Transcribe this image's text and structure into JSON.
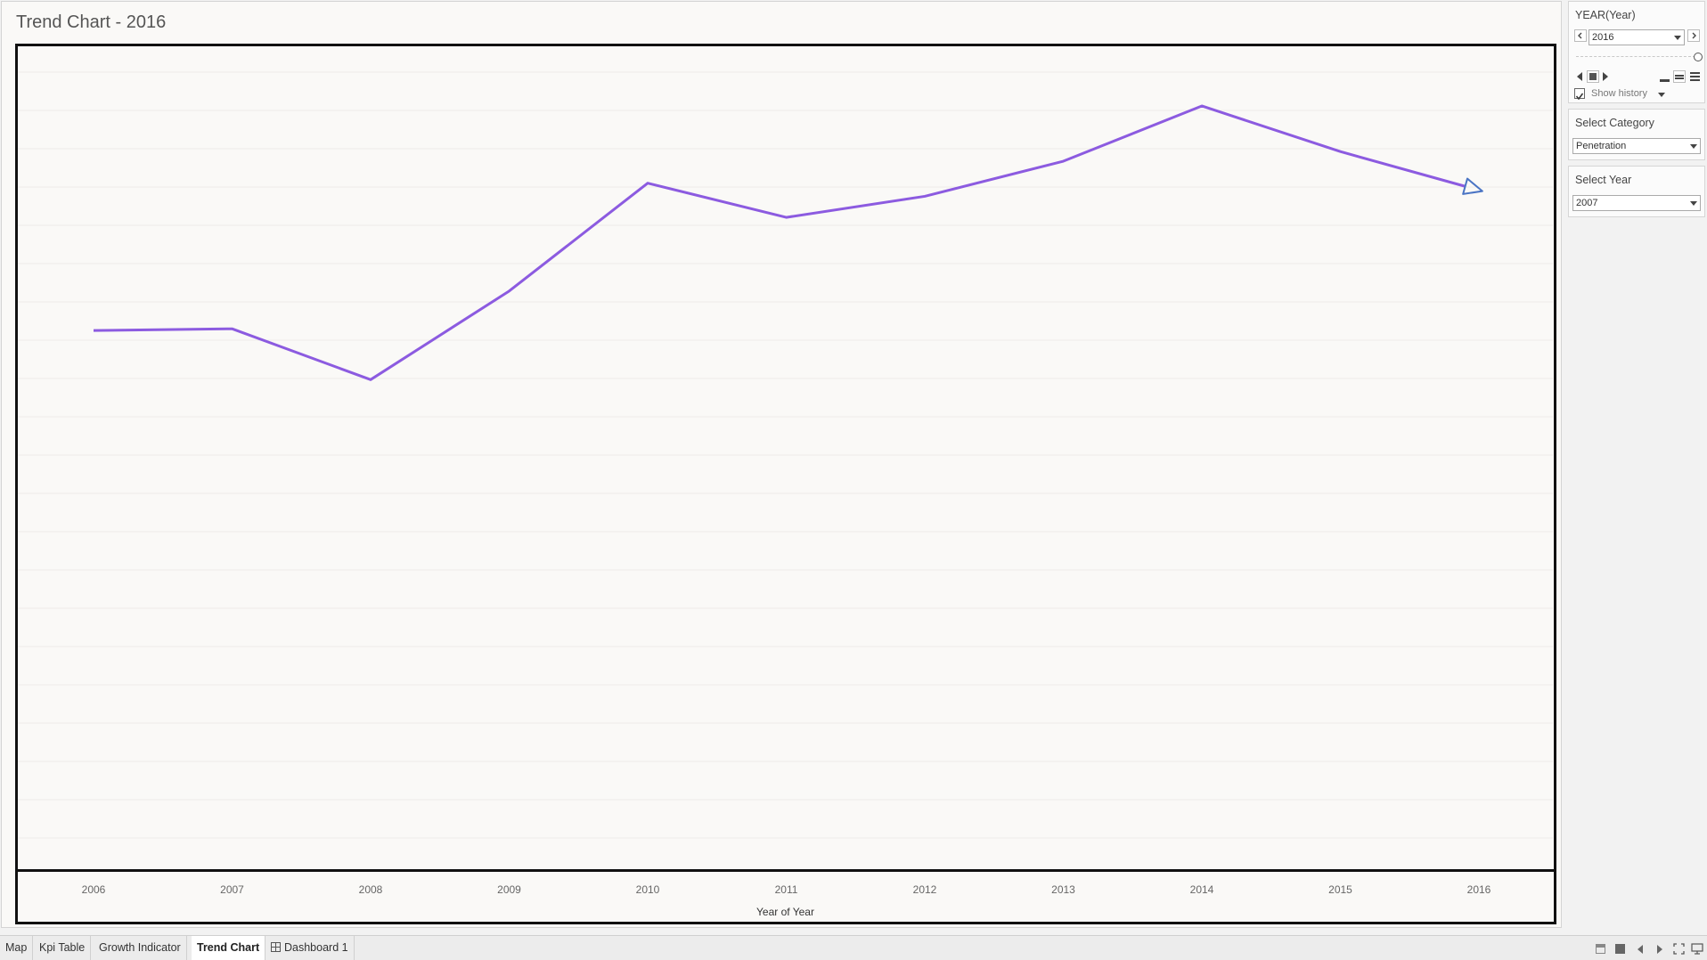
{
  "sheet": {
    "title": "Trend Chart - 2016"
  },
  "chart_data": {
    "type": "line",
    "x": [
      2006,
      2007,
      2008,
      2009,
      2010,
      2011,
      2012,
      2013,
      2014,
      2015,
      2016
    ],
    "categories": [
      "2006",
      "2007",
      "2008",
      "2009",
      "2010",
      "2011",
      "2012",
      "2013",
      "2014",
      "2015",
      "2016"
    ],
    "series": [
      {
        "values": [
          61.5,
          61.7,
          55.9,
          66.0,
          78.3,
          74.4,
          76.8,
          80.8,
          87.1,
          81.9,
          77.5
        ]
      }
    ],
    "ylim": [
      0,
      94
    ],
    "title": "Trend Chart - 2016",
    "xlabel": "Year of Year",
    "ylabel": "",
    "grid": true,
    "line_color": "#8c5be0",
    "end_marker_color": "#4a74c4"
  },
  "panel": {
    "year_filter": {
      "title": "YEAR(Year)",
      "value": "2016",
      "show_history_label": "Show history",
      "show_history_checked": true
    },
    "category_filter": {
      "title": "Select Category",
      "value": "Penetration"
    },
    "year_select": {
      "title": "Select Year",
      "value": "2007"
    }
  },
  "tabs": [
    {
      "label": "Map"
    },
    {
      "label": "Kpi Table"
    },
    {
      "label": "Growth Indicator"
    },
    {
      "label": "Trend Chart",
      "active": true
    },
    {
      "label": "Dashboard 1",
      "icon": "dashboard-grid-icon"
    }
  ]
}
